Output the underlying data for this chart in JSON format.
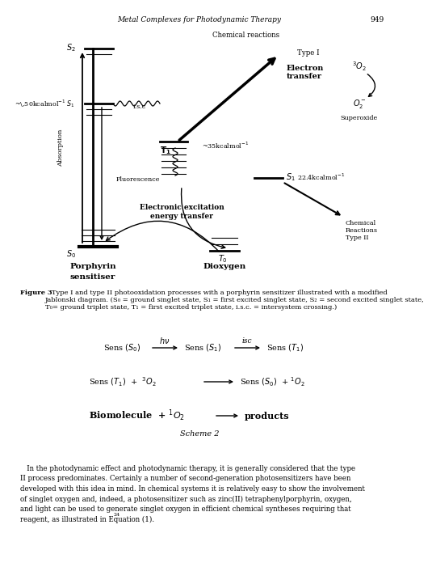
{
  "title_line": "Metal Complexes for Photodynamic Therapy",
  "page_number": "949",
  "bg_color": "#ffffff",
  "fig_caption_bold": "Figure 3",
  "fig_caption_rest": "   Type I and type II photooxidation processes with a porphyrin sensitizer illustrated with a modified\nJablonski diagram. (S₀ = ground singlet state, S₁ = first excited singlet state, S₂ = second excited singlet state,\nT₀= ground triplet state, T₁ = first excited triplet state, i.s.c. = intersystem crossing.)",
  "body_text_line1": "   In the photodynamic effect and photodynamic therapy, it is generally considered that the type",
  "body_text_line2": "II process predominates. Certainly a number of second-generation photosensitizers have been",
  "body_text_line3": "developed with this idea in mind. In chemical systems it is relatively easy to show the involvement",
  "body_text_line4": "of singlet oxygen and, indeed, a photosensitizer such as zinc(II) tetraphenylporphyrin, oxygen,",
  "body_text_line5": "and light can be used to generate singlet oxygen in efficient chemical syntheses requiring that",
  "body_text_line6": "reagent, as illustrated in Equation (1).",
  "body_superscript": "24"
}
